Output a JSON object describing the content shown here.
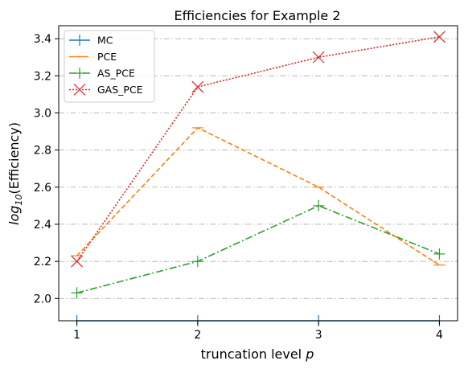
{
  "chart_data": {
    "type": "line",
    "title": "Efficiencies for Example 2",
    "xlabel_main": "truncation level ",
    "xlabel_var": "p",
    "ylabel_prefix": "log",
    "ylabel_sub": "10",
    "ylabel_suffix": "(Efficiency)",
    "x": [
      1,
      2,
      3,
      4
    ],
    "xticks": [
      "1",
      "2",
      "3",
      "4"
    ],
    "yticks": [
      "2.0",
      "2.2",
      "2.4",
      "2.6",
      "2.8",
      "3.0",
      "3.2",
      "3.4"
    ],
    "xlim": [
      0.85,
      4.15
    ],
    "ylim": [
      1.88,
      3.47
    ],
    "grid": "horizontal dash-dot",
    "legend_position": "upper left",
    "series": [
      {
        "name": "MC",
        "values": [
          1.88,
          1.88,
          1.88,
          1.88
        ],
        "color": "#1f77b4",
        "linestyle": "solid",
        "marker": "vline"
      },
      {
        "name": "PCE",
        "values": [
          2.23,
          2.92,
          2.6,
          2.18
        ],
        "color": "#ff7f0e",
        "linestyle": "dashed",
        "marker": "hline"
      },
      {
        "name": "AS_PCE",
        "values": [
          2.03,
          2.2,
          2.5,
          2.24
        ],
        "color": "#2ca02c",
        "linestyle": "dashdot",
        "marker": "plus"
      },
      {
        "name": "GAS_PCE",
        "values": [
          2.2,
          3.14,
          3.3,
          3.41
        ],
        "color": "#d62728",
        "linestyle": "dotted",
        "marker": "x"
      }
    ]
  }
}
